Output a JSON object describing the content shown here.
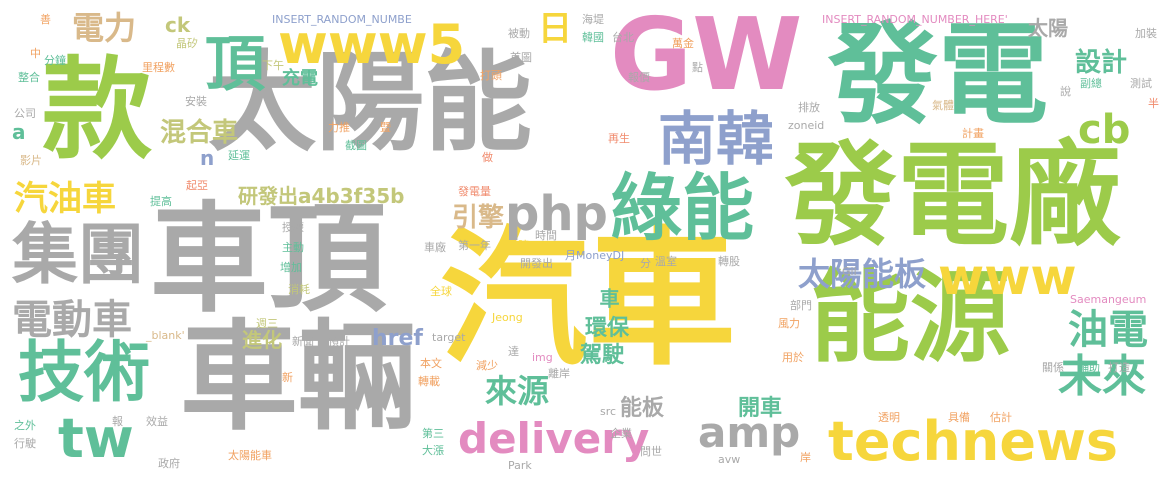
{
  "colors": {
    "gray": "#a9a9a9",
    "yellow": "#f6d63c",
    "green": "#9ccb4a",
    "teal": "#5fbf99",
    "pink": "#e38bc0",
    "blue": "#8ea0cc",
    "orange": "#f1a262",
    "tan": "#d9b98a",
    "coral": "#f08a6c",
    "olive": "#c3c77a"
  },
  "words": [
    {
      "text": "汽車",
      "color": "yellow"
    },
    {
      "text": "車頂",
      "color": "gray"
    },
    {
      "text": "太陽能",
      "color": "gray"
    },
    {
      "text": "發電廠",
      "color": "green"
    },
    {
      "text": "發電",
      "color": "teal"
    },
    {
      "text": "GW",
      "color": "pink"
    },
    {
      "text": "車輛",
      "color": "gray"
    },
    {
      "text": "能源",
      "color": "green"
    },
    {
      "text": "款",
      "color": "green"
    },
    {
      "text": "綠能",
      "color": "teal"
    },
    {
      "text": "technews",
      "color": "yellow"
    },
    {
      "text": "集團",
      "color": "gray"
    },
    {
      "text": "技術",
      "color": "teal"
    },
    {
      "text": "www5",
      "color": "yellow"
    },
    {
      "text": "南韓",
      "color": "blue"
    },
    {
      "text": "www",
      "color": "yellow"
    },
    {
      "text": "頂",
      "color": "teal"
    },
    {
      "text": "delivery",
      "color": "pink"
    },
    {
      "text": "tw",
      "color": "teal"
    },
    {
      "text": "php",
      "color": "gray"
    },
    {
      "text": "amp",
      "color": "gray"
    },
    {
      "text": "電動車",
      "color": "gray"
    },
    {
      "text": "太陽能板",
      "color": "blue"
    },
    {
      "text": "未來",
      "color": "teal"
    },
    {
      "text": "油電",
      "color": "teal"
    },
    {
      "text": "cb",
      "color": "green"
    },
    {
      "text": "汽油車",
      "color": "yellow"
    },
    {
      "text": "電力",
      "color": "tan"
    },
    {
      "text": "日",
      "color": "yellow"
    },
    {
      "text": "混合車",
      "color": "olive"
    },
    {
      "text": "設計",
      "color": "teal"
    },
    {
      "text": "研發出a4b3f35b",
      "color": "olive"
    },
    {
      "text": "引擎",
      "color": "tan"
    },
    {
      "text": "來源",
      "color": "teal"
    },
    {
      "text": "進化",
      "color": "olive"
    },
    {
      "text": "href",
      "color": "blue"
    },
    {
      "text": "環保",
      "color": "teal"
    },
    {
      "text": "駕駛",
      "color": "teal"
    },
    {
      "text": "開車",
      "color": "teal"
    },
    {
      "text": "能板",
      "color": "gray"
    },
    {
      "text": "太陽",
      "color": "gray"
    },
    {
      "text": "充電",
      "color": "teal"
    },
    {
      "text": "ck",
      "color": "olive"
    },
    {
      "text": "車",
      "color": "teal"
    },
    {
      "text": "a",
      "color": "teal"
    },
    {
      "text": "n",
      "color": "blue"
    },
    {
      "text": "INSERT_RANDOM_NUMBE",
      "color": "blue"
    },
    {
      "text": "INSERT_RANDOM_NUMBER_HERE'",
      "color": "pink"
    },
    {
      "text": "海堤",
      "color": "gray"
    },
    {
      "text": "韓國",
      "color": "teal"
    },
    {
      "text": "台北",
      "color": "gray"
    },
    {
      "text": "萬金",
      "color": "orange"
    },
    {
      "text": "報價",
      "color": "gray"
    },
    {
      "text": "點",
      "color": "gray"
    },
    {
      "text": "首圖",
      "color": "gray"
    },
    {
      "text": "被動",
      "color": "gray"
    },
    {
      "text": "打頭",
      "color": "orange"
    },
    {
      "text": "下午",
      "color": "olive"
    },
    {
      "text": "晶矽",
      "color": "olive"
    },
    {
      "text": "里程數",
      "color": "orange"
    },
    {
      "text": "安裝",
      "color": "gray"
    },
    {
      "text": "分鐘",
      "color": "teal"
    },
    {
      "text": "整合",
      "color": "teal"
    },
    {
      "text": "公司",
      "color": "gray"
    },
    {
      "text": "影片",
      "color": "tan"
    },
    {
      "text": "中",
      "color": "orange"
    },
    {
      "text": "善",
      "color": "orange"
    },
    {
      "text": "延運",
      "color": "teal"
    },
    {
      "text": "力推",
      "color": "orange"
    },
    {
      "text": "截圖",
      "color": "teal"
    },
    {
      "text": "暨",
      "color": "orange"
    },
    {
      "text": "做",
      "color": "coral"
    },
    {
      "text": "再生",
      "color": "coral"
    },
    {
      "text": "zoneid",
      "color": "gray"
    },
    {
      "text": "排放",
      "color": "gray"
    },
    {
      "text": "氣體",
      "color": "tan"
    },
    {
      "text": "計畫",
      "color": "orange"
    },
    {
      "text": "說",
      "color": "gray"
    },
    {
      "text": "副總",
      "color": "teal"
    },
    {
      "text": "測試",
      "color": "gray"
    },
    {
      "text": "加裝",
      "color": "gray"
    },
    {
      "text": "半",
      "color": "coral"
    },
    {
      "text": "起亞",
      "color": "coral"
    },
    {
      "text": "提高",
      "color": "teal"
    },
    {
      "text": "發電量",
      "color": "coral"
    },
    {
      "text": "授權",
      "color": "gray"
    },
    {
      "text": "主動",
      "color": "teal"
    },
    {
      "text": "增加",
      "color": "teal"
    },
    {
      "text": "消耗",
      "color": "olive"
    },
    {
      "text": "時間",
      "color": "gray"
    },
    {
      "text": "第一年",
      "color": "gray"
    },
    {
      "text": "車廠",
      "color": "gray"
    },
    {
      "text": "陣",
      "color": "yellow"
    },
    {
      "text": "開發出",
      "color": "gray"
    },
    {
      "text": "月MoneyDJ",
      "color": "blue"
    },
    {
      "text": "分",
      "color": "gray"
    },
    {
      "text": "溫室",
      "color": "gray"
    },
    {
      "text": "轉股",
      "color": "gray"
    },
    {
      "text": "全球",
      "color": "yellow"
    },
    {
      "text": "Gil",
      "color": "gray"
    },
    {
      "text": "Saemangeum",
      "color": "pink"
    },
    {
      "text": "部門",
      "color": "gray"
    },
    {
      "text": "風力",
      "color": "orange"
    },
    {
      "text": "_blank'",
      "color": "tan"
    },
    {
      "text": "target",
      "color": "gray"
    },
    {
      "text": "Jeong",
      "color": "yellow"
    },
    {
      "text": "週三",
      "color": "olive"
    },
    {
      "text": "新聞",
      "color": "gray"
    },
    {
      "text": "預計",
      "color": "gray"
    },
    {
      "text": "達",
      "color": "gray"
    },
    {
      "text": "img",
      "color": "pink"
    },
    {
      "text": "離岸",
      "color": "gray"
    },
    {
      "text": "用於",
      "color": "orange"
    },
    {
      "text": "輔助",
      "color": "teal"
    },
    {
      "text": "關係",
      "color": "gray"
    },
    {
      "text": "打造",
      "color": "gray"
    },
    {
      "text": "新",
      "color": "orange"
    },
    {
      "text": "本文",
      "color": "orange"
    },
    {
      "text": "減少",
      "color": "orange"
    },
    {
      "text": "轉載",
      "color": "orange"
    },
    {
      "text": "src",
      "color": "gray"
    },
    {
      "text": "企業",
      "color": "gray"
    },
    {
      "text": "透明",
      "color": "orange"
    },
    {
      "text": "具備",
      "color": "orange"
    },
    {
      "text": "估計",
      "color": "orange"
    },
    {
      "text": "之外",
      "color": "teal"
    },
    {
      "text": "行駛",
      "color": "gray"
    },
    {
      "text": "報",
      "color": "gray"
    },
    {
      "text": "效益",
      "color": "gray"
    },
    {
      "text": "第三",
      "color": "teal"
    },
    {
      "text": "大漲",
      "color": "teal"
    },
    {
      "text": "問世",
      "color": "gray"
    },
    {
      "text": "政府",
      "color": "gray"
    },
    {
      "text": "太陽能車",
      "color": "orange"
    },
    {
      "text": "Park",
      "color": "gray"
    },
    {
      "text": "avw",
      "color": "gray"
    },
    {
      "text": "岸",
      "color": "orange"
    }
  ]
}
